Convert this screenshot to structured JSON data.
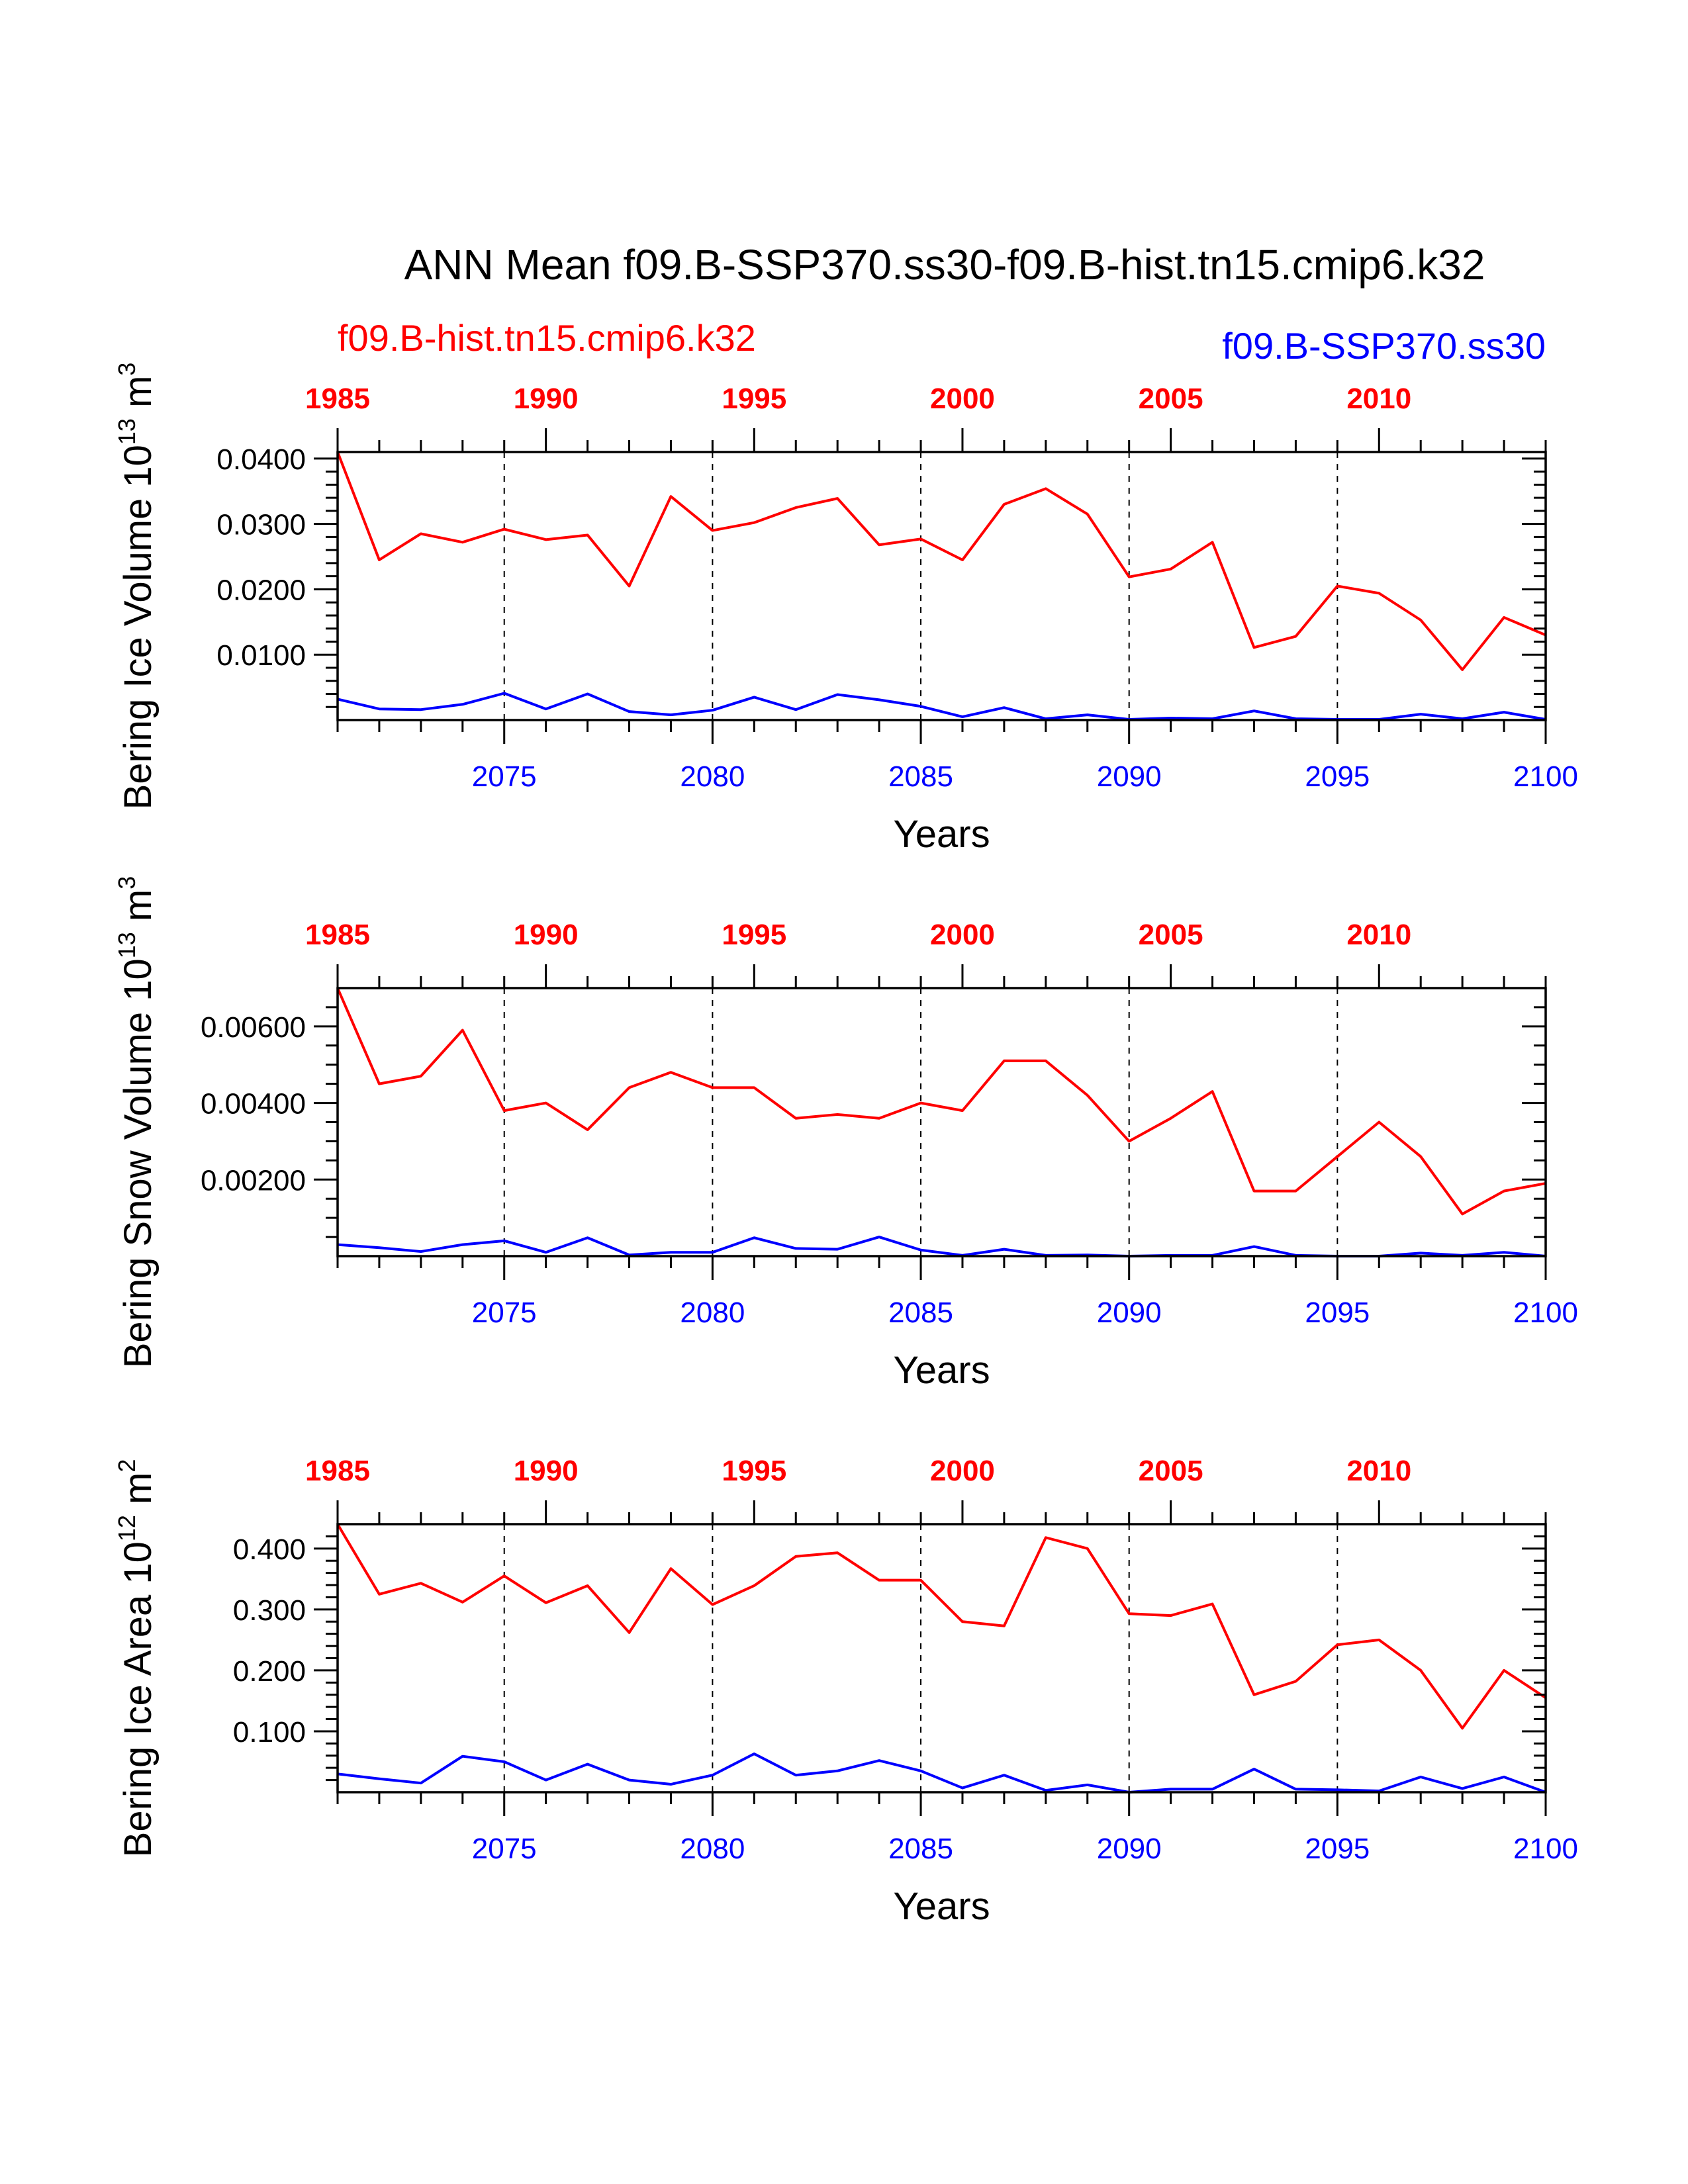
{
  "figure": {
    "title": "ANN Mean f09.B-SSP370.ss30-f09.B-hist.tn15.cmip6.k32",
    "legend": {
      "left_label": "f09.B-hist.tn15.cmip6.k32",
      "right_label": "f09.B-SSP370.ss30"
    },
    "colors": {
      "hist": "#ff0000",
      "ssp": "#0000ff",
      "axes": "#000000"
    }
  },
  "chart_data": [
    {
      "type": "line",
      "ylabel_text": "Bering Ice Volume 10",
      "ylabel_exp": "13",
      "ylabel_unit": "m",
      "ylabel_unit_exp": "3",
      "xlabel": "Years",
      "bottom_axis": {
        "range": [
          2071,
          2100
        ],
        "ticks": [
          2075,
          2080,
          2085,
          2090,
          2095,
          2100
        ]
      },
      "top_axis": {
        "range": [
          1985,
          2014
        ],
        "ticks": [
          1985,
          1990,
          1995,
          2000,
          2005,
          2010
        ]
      },
      "ylim": [
        0,
        0.041
      ],
      "yticks": [
        0.01,
        0.02,
        0.03,
        0.04
      ],
      "ytick_labels": [
        "0.0100",
        "0.0200",
        "0.0300",
        "0.0400"
      ],
      "yminor": [
        0.002,
        0.004,
        0.006,
        0.008,
        0.012,
        0.014,
        0.016,
        0.018,
        0.022,
        0.024,
        0.026,
        0.028,
        0.032,
        0.034,
        0.036,
        0.038
      ],
      "dashed_grid_x": [
        2075,
        2080,
        2085,
        2090,
        2095
      ],
      "series": [
        {
          "name": "f09.B-hist.tn15.cmip6.k32",
          "x": [
            1985,
            1986,
            1987,
            1988,
            1989,
            1990,
            1991,
            1992,
            1993,
            1994,
            1995,
            1996,
            1997,
            1998,
            1999,
            2000,
            2001,
            2002,
            2003,
            2004,
            2005,
            2006,
            2007,
            2008,
            2009,
            2010,
            2011,
            2012,
            2013,
            2014
          ],
          "y": [
            0.041,
            0.0245,
            0.0285,
            0.0272,
            0.0292,
            0.0276,
            0.0283,
            0.0205,
            0.0342,
            0.029,
            0.0302,
            0.0325,
            0.0339,
            0.0268,
            0.0277,
            0.0245,
            0.033,
            0.0354,
            0.0315,
            0.0219,
            0.0231,
            0.0272,
            0.0111,
            0.0128,
            0.0205,
            0.0194,
            0.0153,
            0.0077,
            0.0157,
            0.013
          ]
        },
        {
          "name": "f09.B-SSP370.ss30",
          "x": [
            2071,
            2072,
            2073,
            2074,
            2075,
            2076,
            2077,
            2078,
            2079,
            2080,
            2081,
            2082,
            2083,
            2084,
            2085,
            2086,
            2087,
            2088,
            2089,
            2090,
            2091,
            2092,
            2093,
            2094,
            2095,
            2096,
            2097,
            2098,
            2099,
            2100
          ],
          "y": [
            0.0032,
            0.0017,
            0.0016,
            0.0024,
            0.0041,
            0.0017,
            0.004,
            0.0013,
            0.0008,
            0.0015,
            0.0035,
            0.0016,
            0.0039,
            0.0031,
            0.0021,
            0.0005,
            0.0019,
            0.0002,
            0.0008,
            0.0001,
            0.0003,
            0.0002,
            0.0014,
            0.0002,
            0.0001,
            0.0001,
            0.0009,
            0.0002,
            0.0012,
            0.0001
          ]
        }
      ]
    },
    {
      "type": "line",
      "ylabel_text": "Bering Snow Volume 10",
      "ylabel_exp": "13",
      "ylabel_unit": "m",
      "ylabel_unit_exp": "3",
      "xlabel": "Years",
      "bottom_axis": {
        "range": [
          2071,
          2100
        ],
        "ticks": [
          2075,
          2080,
          2085,
          2090,
          2095,
          2100
        ]
      },
      "top_axis": {
        "range": [
          1985,
          2014
        ],
        "ticks": [
          1985,
          1990,
          1995,
          2000,
          2005,
          2010
        ]
      },
      "ylim": [
        0,
        0.007
      ],
      "yticks": [
        0.002,
        0.004,
        0.006
      ],
      "ytick_labels": [
        "0.00200",
        "0.00400",
        "0.00600"
      ],
      "yminor": [
        0.0005,
        0.001,
        0.0015,
        0.0025,
        0.003,
        0.0035,
        0.0045,
        0.005,
        0.0055,
        0.0065
      ],
      "dashed_grid_x": [
        2075,
        2080,
        2085,
        2090,
        2095
      ],
      "series": [
        {
          "name": "f09.B-hist.tn15.cmip6.k32",
          "x": [
            1985,
            1986,
            1987,
            1988,
            1989,
            1990,
            1991,
            1992,
            1993,
            1994,
            1995,
            1996,
            1997,
            1998,
            1999,
            2000,
            2001,
            2002,
            2003,
            2004,
            2005,
            2006,
            2007,
            2008,
            2009,
            2010,
            2011,
            2012,
            2013,
            2014
          ],
          "y": [
            0.007,
            0.0045,
            0.0047,
            0.0059,
            0.0038,
            0.004,
            0.0033,
            0.0044,
            0.0048,
            0.0044,
            0.0044,
            0.0036,
            0.0037,
            0.0036,
            0.004,
            0.0038,
            0.0051,
            0.0051,
            0.0042,
            0.003,
            0.0036,
            0.0043,
            0.0017,
            0.0017,
            0.0026,
            0.0035,
            0.0026,
            0.0011,
            0.0017,
            0.0019
          ]
        },
        {
          "name": "f09.B-SSP370.ss30",
          "x": [
            2071,
            2072,
            2073,
            2074,
            2075,
            2076,
            2077,
            2078,
            2079,
            2080,
            2081,
            2082,
            2083,
            2084,
            2085,
            2086,
            2087,
            2088,
            2089,
            2090,
            2091,
            2092,
            2093,
            2094,
            2095,
            2096,
            2097,
            2098,
            2099,
            2100
          ],
          "y": [
            0.0003,
            0.00022,
            0.00012,
            0.0003,
            0.0004,
            0.0001,
            0.00048,
            3e-05,
            0.0001,
            0.0001,
            0.00048,
            0.0002,
            0.00018,
            0.0005,
            0.00016,
            2e-05,
            0.00018,
            2e-05,
            3e-05,
            0.0,
            2e-05,
            2e-05,
            0.00025,
            2e-05,
            0.0,
            0.0,
            8e-05,
            2e-05,
            0.0001,
            0.0
          ]
        }
      ]
    },
    {
      "type": "line",
      "ylabel_text": "Bering Ice Area 10",
      "ylabel_exp": "12",
      "ylabel_unit": "m",
      "ylabel_unit_exp": "2",
      "xlabel": "Years",
      "bottom_axis": {
        "range": [
          2071,
          2100
        ],
        "ticks": [
          2075,
          2080,
          2085,
          2090,
          2095,
          2100
        ]
      },
      "top_axis": {
        "range": [
          1985,
          2014
        ],
        "ticks": [
          1985,
          1990,
          1995,
          2000,
          2005,
          2010
        ]
      },
      "ylim": [
        0,
        0.44
      ],
      "yticks": [
        0.1,
        0.2,
        0.3,
        0.4
      ],
      "ytick_labels": [
        "0.100",
        "0.200",
        "0.300",
        "0.400"
      ],
      "yminor": [
        0.02,
        0.04,
        0.06,
        0.08,
        0.12,
        0.14,
        0.16,
        0.18,
        0.22,
        0.24,
        0.26,
        0.28,
        0.32,
        0.34,
        0.36,
        0.38,
        0.42
      ],
      "dashed_grid_x": [
        2075,
        2080,
        2085,
        2090,
        2095
      ],
      "series": [
        {
          "name": "f09.B-hist.tn15.cmip6.k32",
          "x": [
            1985,
            1986,
            1987,
            1988,
            1989,
            1990,
            1991,
            1992,
            1993,
            1994,
            1995,
            1996,
            1997,
            1998,
            1999,
            2000,
            2001,
            2002,
            2003,
            2004,
            2005,
            2006,
            2007,
            2008,
            2009,
            2010,
            2011,
            2012,
            2013,
            2014
          ],
          "y": [
            0.44,
            0.325,
            0.343,
            0.312,
            0.355,
            0.311,
            0.339,
            0.262,
            0.367,
            0.308,
            0.339,
            0.387,
            0.393,
            0.348,
            0.348,
            0.28,
            0.273,
            0.418,
            0.4,
            0.293,
            0.29,
            0.309,
            0.16,
            0.182,
            0.242,
            0.25,
            0.2,
            0.105,
            0.2,
            0.155
          ]
        },
        {
          "name": "f09.B-SSP370.ss30",
          "x": [
            2071,
            2072,
            2073,
            2074,
            2075,
            2076,
            2077,
            2078,
            2079,
            2080,
            2081,
            2082,
            2083,
            2084,
            2085,
            2086,
            2087,
            2088,
            2089,
            2090,
            2091,
            2092,
            2093,
            2094,
            2095,
            2096,
            2097,
            2098,
            2099,
            2100
          ],
          "y": [
            0.03,
            0.022,
            0.015,
            0.059,
            0.05,
            0.02,
            0.046,
            0.02,
            0.013,
            0.028,
            0.063,
            0.028,
            0.035,
            0.052,
            0.035,
            0.007,
            0.028,
            0.003,
            0.012,
            0.0,
            0.005,
            0.005,
            0.038,
            0.005,
            0.004,
            0.002,
            0.025,
            0.006,
            0.025,
            0.0
          ]
        }
      ]
    }
  ]
}
